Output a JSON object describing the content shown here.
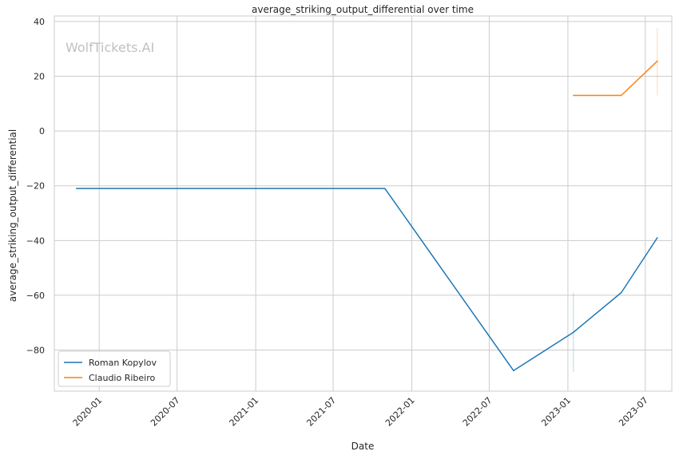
{
  "chart_data": {
    "type": "line",
    "title": "average_striking_output_differential over time",
    "xlabel": "Date",
    "ylabel": "average_striking_output_differential",
    "watermark": "WolfTickets.AI",
    "xlim": [
      "2019-09-18",
      "2023-09-01"
    ],
    "ylim": [
      -95,
      42
    ],
    "x_ticks": [
      "2020-01-01",
      "2020-07-01",
      "2021-01-01",
      "2021-07-01",
      "2022-01-01",
      "2022-07-01",
      "2023-01-01",
      "2023-07-01"
    ],
    "x_tick_labels": [
      "2020-01",
      "2020-07",
      "2021-01",
      "2021-07",
      "2022-01",
      "2022-07",
      "2023-01",
      "2023-07"
    ],
    "y_ticks": [
      40,
      20,
      0,
      -20,
      -40,
      -60,
      -80
    ],
    "y_tick_labels": [
      "40",
      "20",
      "0",
      "−20",
      "−40",
      "−60",
      "−80"
    ],
    "grid": true,
    "legend_position": "bottom-left",
    "series": [
      {
        "name": "Roman Kopylov",
        "color": "#1f77b4",
        "x": [
          "2019-11-09",
          "2021-10-30",
          "2022-08-27",
          "2023-01-14",
          "2023-05-06",
          "2023-07-29"
        ],
        "y": [
          -21,
          -21,
          -87.5,
          -73.5,
          -59,
          -39
        ],
        "error_bars": [
          {
            "x": "2023-01-14",
            "low": -88,
            "high": -59
          }
        ]
      },
      {
        "name": "Claudio Ribeiro",
        "color": "#ff7f0e",
        "x": [
          "2023-01-14",
          "2023-05-06",
          "2023-07-29"
        ],
        "y": [
          13,
          13,
          25.5
        ],
        "error_bars": [
          {
            "x": "2023-07-29",
            "low": 13,
            "high": 37.5
          }
        ]
      }
    ]
  }
}
